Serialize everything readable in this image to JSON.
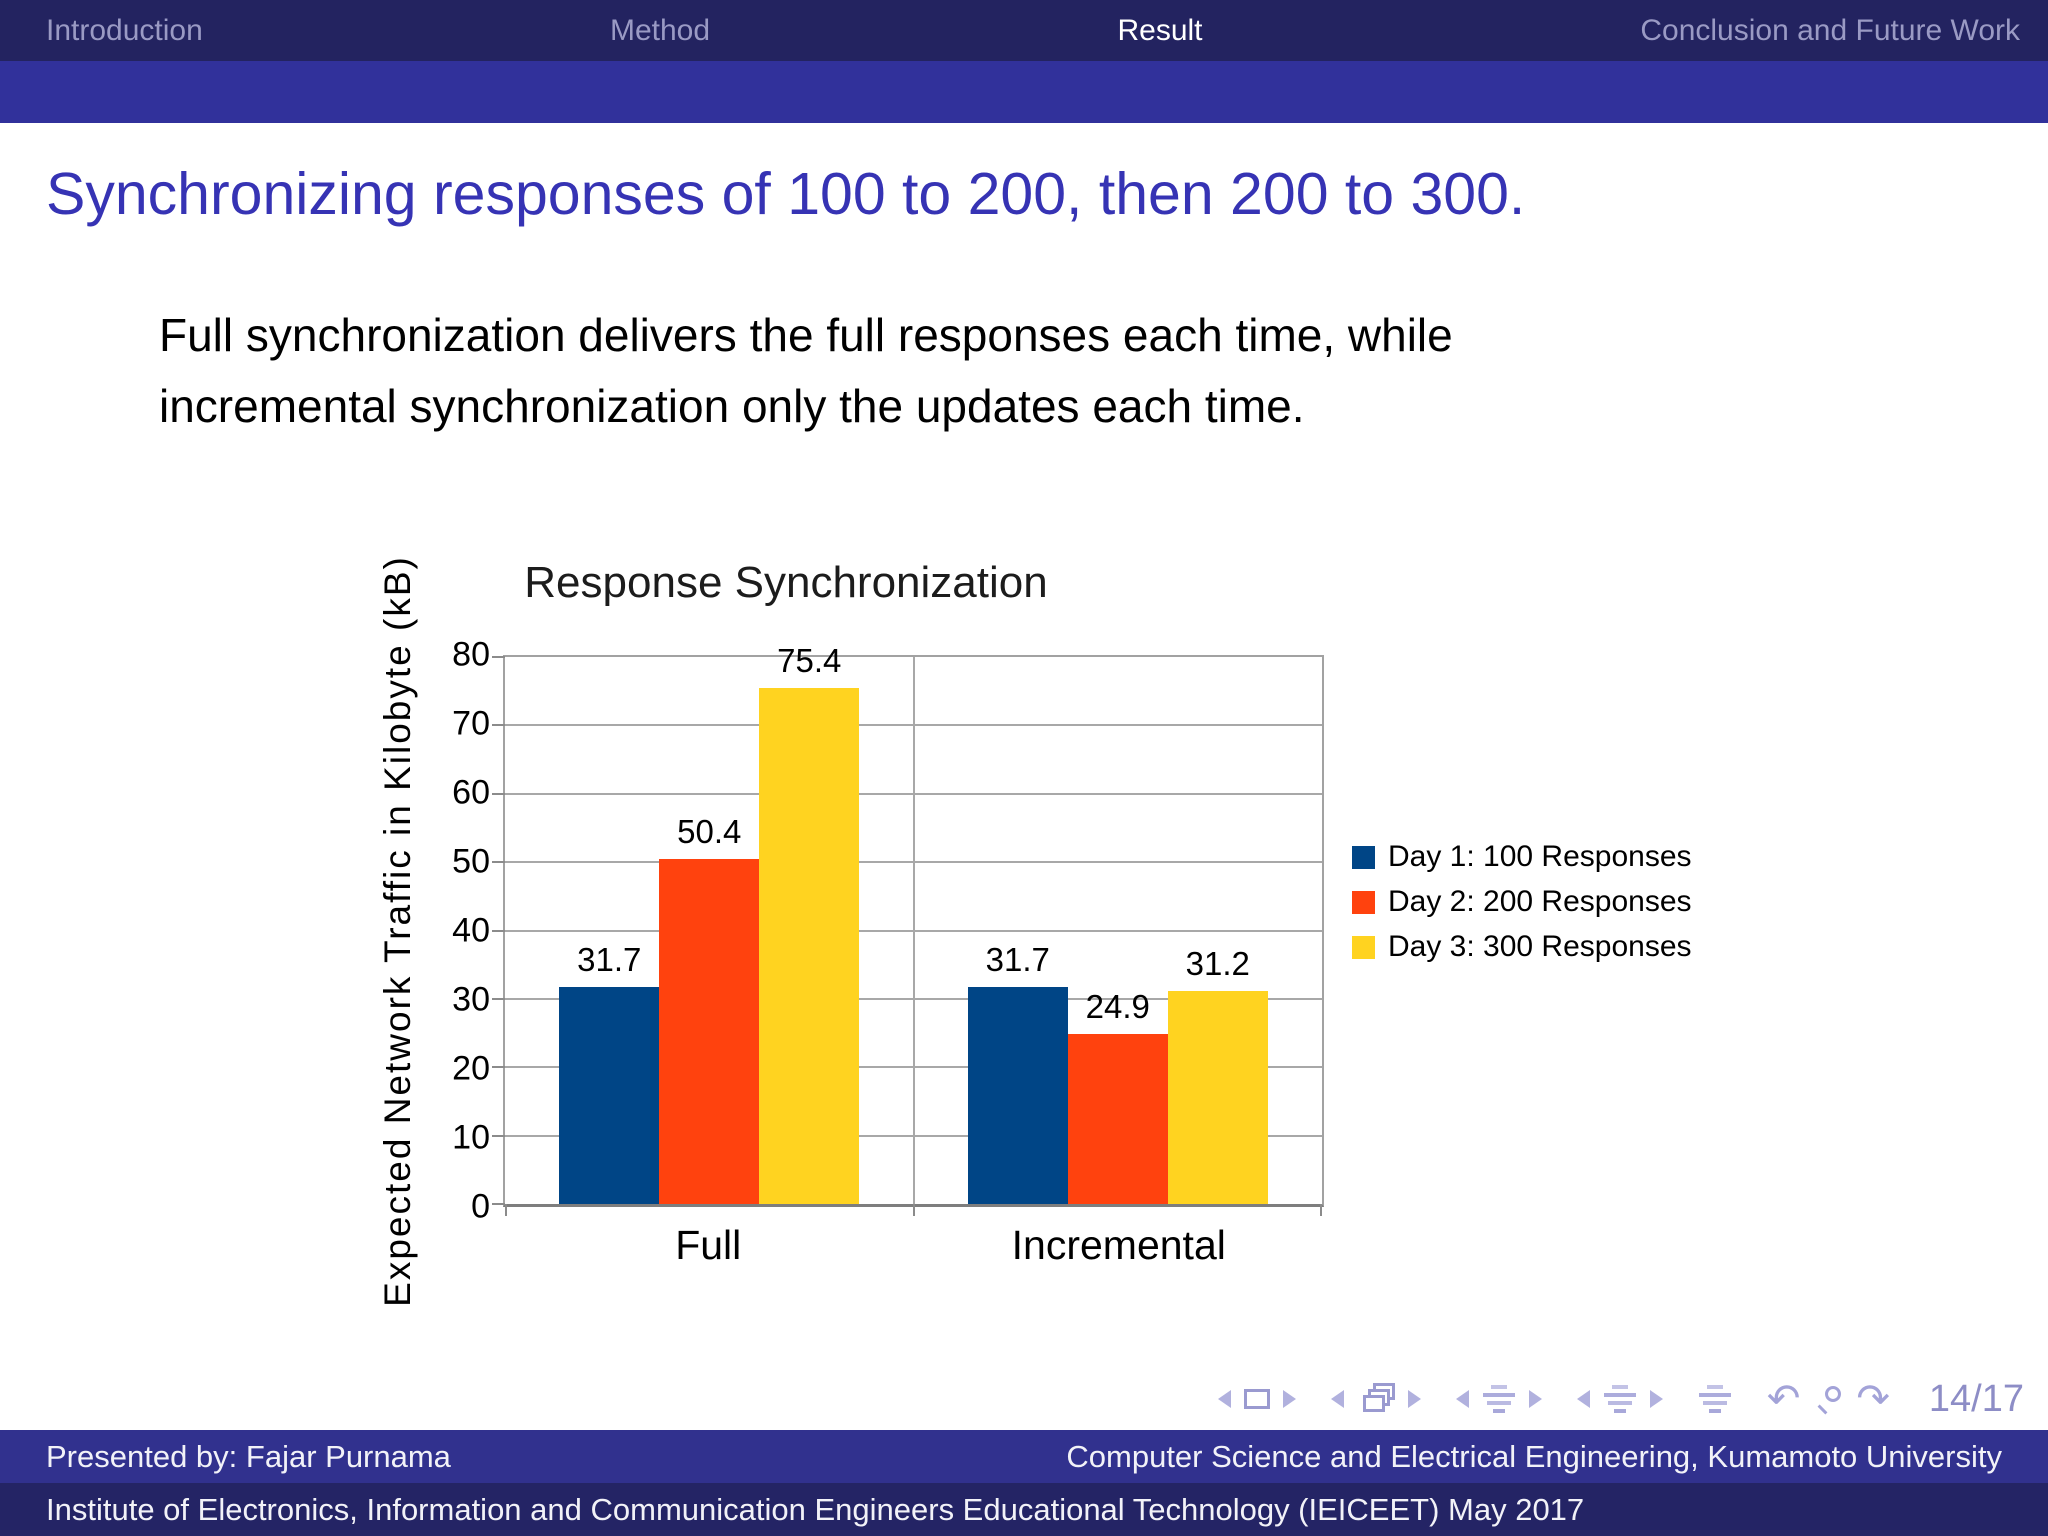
{
  "header": {
    "sections": [
      {
        "label": "Introduction",
        "active": false
      },
      {
        "label": "Method",
        "active": false
      },
      {
        "label": "Result",
        "active": true
      },
      {
        "label": "Conclusion and Future Work",
        "active": false
      }
    ]
  },
  "slide": {
    "title": "Synchronizing responses of 100 to 200, then 200 to 300.",
    "body": "Full synchronization delivers the full responses each time, while\nincremental synchronization only the updates each time."
  },
  "chart_data": {
    "type": "bar",
    "title": "Response Synchronization",
    "categories": [
      "Full",
      "Incremental"
    ],
    "series": [
      {
        "name": "Day 1: 100 Responses",
        "color": "#004586",
        "values": [
          31.7,
          31.7
        ]
      },
      {
        "name": "Day 2: 200 Responses",
        "color": "#ff420e",
        "values": [
          50.4,
          24.9
        ]
      },
      {
        "name": "Day 3: 300 Responses",
        "color": "#ffd320",
        "values": [
          75.4,
          31.2
        ]
      }
    ],
    "xlabel": "",
    "ylabel": "Expected Network Traffic in Kilobyte (kB)",
    "ylim": [
      0,
      80
    ],
    "ytick_step": 10,
    "grid": true,
    "legend_position": "right",
    "value_label_decimals": 1
  },
  "navigation": {
    "symbols": [
      "slide-prev",
      "slide",
      "slide-next",
      "frame-prev",
      "frame",
      "frame-next",
      "section-prev",
      "section",
      "section-next",
      "subsection-prev",
      "subsection",
      "subsection-next",
      "presentation",
      "back",
      "search",
      "forward"
    ],
    "undo_icon": "↶",
    "redo_icon": "↷",
    "page_indicator": "14/17"
  },
  "footer": {
    "line1_left": "Presented by: Fajar Purnama",
    "line1_right": "Computer Science and Electrical Engineering, Kumamoto University",
    "line2": "Institute of Electronics, Information and Communication Engineers Educational Technology (IEICEET) May 2017"
  },
  "colors": {
    "header_bar1": "#232360",
    "header_bar2": "#31319b",
    "footer_bar1": "#31318e",
    "footer_bar2": "#242465",
    "title_blue": "#3633b4",
    "nav_lavender": "#a3a3d8"
  }
}
